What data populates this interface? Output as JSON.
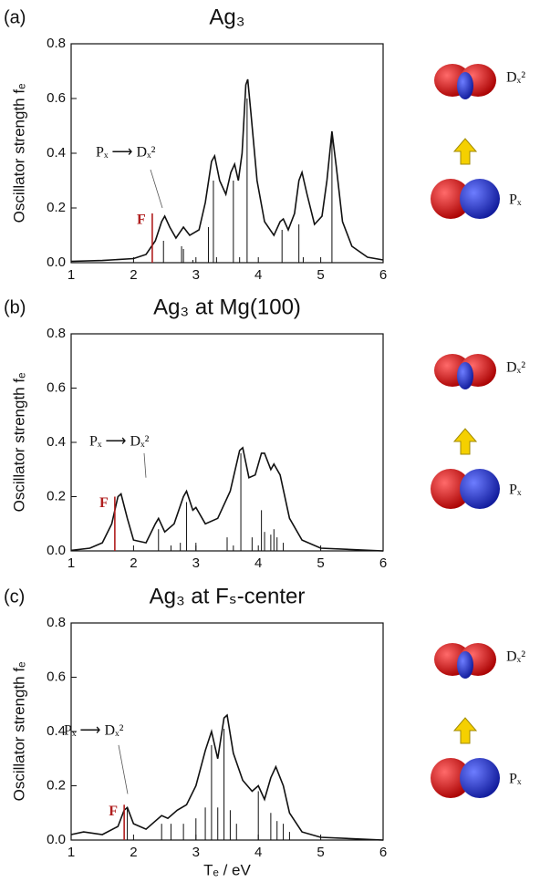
{
  "chart_data": [
    {
      "type": "line",
      "panel": "(a)",
      "title": "Ag₃",
      "y_label": "Oscillator strength fₑ",
      "xlim": [
        1,
        6
      ],
      "xticks": [
        1,
        2,
        3,
        4,
        5,
        6
      ],
      "ylim": [
        0,
        0.8
      ],
      "yticks": [
        {
          "value": 0,
          "label": "0.0"
        },
        0.2,
        0.4,
        0.6,
        0.8
      ],
      "annotations": [
        "F",
        "Pₓ ⟶ Dₓ²"
      ],
      "orbitals": [
        "Dₓ²",
        "Pₓ"
      ],
      "series": [
        {
          "type": "line",
          "color": "#111111",
          "x": [
            1.0,
            1.5,
            2.0,
            2.2,
            2.35,
            2.45,
            2.5,
            2.58,
            2.68,
            2.8,
            2.9,
            3.05,
            3.15,
            3.25,
            3.3,
            3.38,
            3.48,
            3.56,
            3.62,
            3.68,
            3.74,
            3.8,
            3.83,
            3.88,
            3.98,
            4.1,
            4.25,
            4.35,
            4.4,
            4.48,
            4.58,
            4.65,
            4.7,
            4.78,
            4.9,
            5.02,
            5.1,
            5.18,
            5.25,
            5.35,
            5.5,
            5.75,
            6.0
          ],
          "values": [
            0.005,
            0.008,
            0.015,
            0.03,
            0.08,
            0.15,
            0.17,
            0.13,
            0.09,
            0.13,
            0.1,
            0.12,
            0.22,
            0.37,
            0.39,
            0.3,
            0.25,
            0.33,
            0.36,
            0.3,
            0.4,
            0.65,
            0.67,
            0.55,
            0.3,
            0.15,
            0.1,
            0.15,
            0.16,
            0.12,
            0.18,
            0.3,
            0.33,
            0.25,
            0.14,
            0.17,
            0.3,
            0.48,
            0.35,
            0.15,
            0.06,
            0.02,
            0.01
          ]
        },
        {
          "type": "stem",
          "color": "#b01e1e",
          "x": [
            2.3
          ],
          "values": [
            0.18
          ]
        },
        {
          "type": "stem",
          "color": "#111111",
          "x": [
            2.48,
            2.77,
            2.8,
            2.95,
            3.2,
            3.28,
            3.33,
            3.6,
            3.7,
            3.82,
            4.38,
            4.65,
            4.72,
            5.18
          ],
          "values": [
            0.08,
            0.06,
            0.05,
            0.01,
            0.13,
            0.3,
            0.02,
            0.3,
            0.02,
            0.6,
            0.12,
            0.14,
            0.02,
            0.47
          ]
        }
      ]
    },
    {
      "type": "line",
      "panel": "(b)",
      "title": "Ag₃ at Mg(100)",
      "y_label": "Oscillator strength fₑ",
      "xlim": [
        1,
        6
      ],
      "xticks": [
        1,
        2,
        3,
        4,
        5,
        6
      ],
      "ylim": [
        0,
        0.8
      ],
      "yticks": [
        {
          "value": 0,
          "label": "0.0"
        },
        0.2,
        0.4,
        0.6,
        0.8
      ],
      "annotations": [
        "F",
        "Pₓ ⟶ Dₓ²"
      ],
      "orbitals": [
        "Dₓ²",
        "Pₓ"
      ],
      "series": [
        {
          "type": "line",
          "color": "#111111",
          "x": [
            1.0,
            1.3,
            1.5,
            1.65,
            1.75,
            1.8,
            1.9,
            2.0,
            2.2,
            2.35,
            2.4,
            2.5,
            2.65,
            2.8,
            2.85,
            2.95,
            3.0,
            3.15,
            3.35,
            3.55,
            3.7,
            3.75,
            3.85,
            3.95,
            4.05,
            4.1,
            4.2,
            4.25,
            4.35,
            4.5,
            4.7,
            5.0,
            6.0
          ],
          "values": [
            0.002,
            0.01,
            0.03,
            0.1,
            0.2,
            0.21,
            0.12,
            0.04,
            0.03,
            0.1,
            0.12,
            0.07,
            0.1,
            0.2,
            0.22,
            0.15,
            0.16,
            0.1,
            0.12,
            0.22,
            0.37,
            0.38,
            0.27,
            0.28,
            0.36,
            0.36,
            0.3,
            0.32,
            0.28,
            0.12,
            0.04,
            0.01,
            0.0
          ]
        },
        {
          "type": "stem",
          "color": "#b01e1e",
          "x": [
            1.7
          ],
          "values": [
            0.2
          ]
        },
        {
          "type": "stem",
          "color": "#111111",
          "x": [
            2.4,
            2.6,
            2.75,
            2.85,
            3.0,
            3.5,
            3.6,
            3.72,
            3.9,
            4.05,
            4.1,
            4.2,
            4.25,
            4.3,
            4.4
          ],
          "values": [
            0.08,
            0.02,
            0.03,
            0.18,
            0.03,
            0.05,
            0.02,
            0.36,
            0.05,
            0.15,
            0.07,
            0.06,
            0.08,
            0.05,
            0.03
          ]
        }
      ]
    },
    {
      "type": "line",
      "panel": "(c)",
      "title": "Ag₃ at Fₛ-center",
      "y_label": "Oscillator strength fₑ",
      "x_label": "Tₑ / eV",
      "xlim": [
        1,
        6
      ],
      "xticks": [
        1,
        2,
        3,
        4,
        5,
        6
      ],
      "ylim": [
        0,
        0.8
      ],
      "yticks": [
        {
          "value": 0,
          "label": "0.0"
        },
        0.2,
        0.4,
        0.6,
        0.8
      ],
      "annotations": [
        "F",
        "Pₓ ⟶ Dₓ²"
      ],
      "orbitals": [
        "Dₓ²",
        "Pₓ"
      ],
      "series": [
        {
          "type": "line",
          "color": "#111111",
          "x": [
            1.0,
            1.2,
            1.5,
            1.75,
            1.85,
            1.9,
            2.0,
            2.2,
            2.45,
            2.55,
            2.7,
            2.85,
            3.0,
            3.15,
            3.25,
            3.35,
            3.45,
            3.5,
            3.6,
            3.75,
            3.9,
            4.0,
            4.1,
            4.2,
            4.28,
            4.4,
            4.5,
            4.7,
            5.0,
            6.0
          ],
          "values": [
            0.02,
            0.03,
            0.02,
            0.05,
            0.11,
            0.12,
            0.06,
            0.04,
            0.09,
            0.08,
            0.11,
            0.13,
            0.2,
            0.33,
            0.4,
            0.3,
            0.45,
            0.46,
            0.32,
            0.22,
            0.18,
            0.2,
            0.15,
            0.23,
            0.27,
            0.2,
            0.1,
            0.03,
            0.01,
            0.0
          ]
        },
        {
          "type": "stem",
          "color": "#b01e1e",
          "x": [
            1.85
          ],
          "values": [
            0.13
          ]
        },
        {
          "type": "stem",
          "color": "#111111",
          "x": [
            1.9,
            2.45,
            2.6,
            2.8,
            3.0,
            3.15,
            3.25,
            3.35,
            3.45,
            3.55,
            3.65,
            4.0,
            4.2,
            4.3,
            4.4,
            4.5
          ],
          "values": [
            0.12,
            0.06,
            0.06,
            0.06,
            0.08,
            0.12,
            0.35,
            0.12,
            0.41,
            0.11,
            0.06,
            0.18,
            0.1,
            0.07,
            0.06,
            0.03
          ]
        }
      ]
    }
  ]
}
